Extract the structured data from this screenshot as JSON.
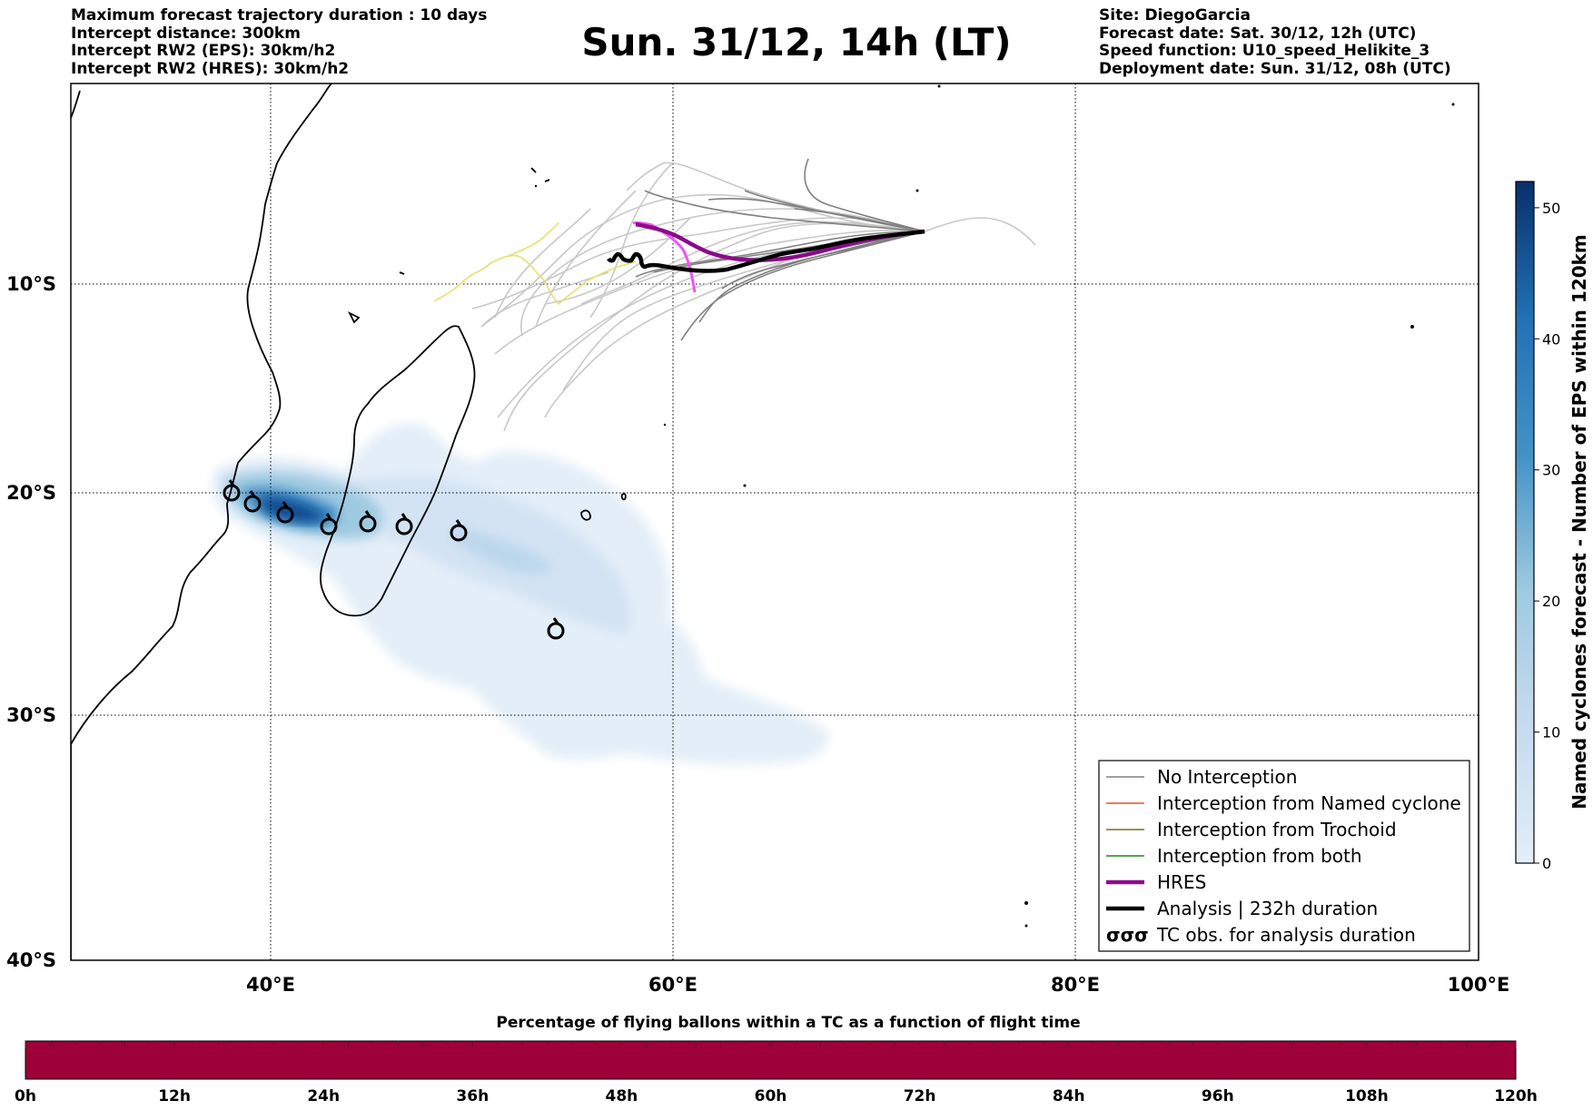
{
  "header_left": [
    "Maximum forecast trajectory duration : 10 days",
    "Intercept distance: 300km",
    "Intercept RW2 (EPS):  30km/h2",
    "Intercept RW2 (HRES): 30km/h2"
  ],
  "header_right": [
    "Site: DiegoGarcia",
    "Forecast date: Sat. 30/12, 12h (UTC)",
    "Speed function: U10_speed_Helikite_3",
    "Deployment date: Sun. 31/12, 08h (UTC)"
  ],
  "title": "Sun. 31/12, 14h (LT)",
  "map": {
    "lon_range": [
      30,
      100
    ],
    "lat_range": [
      -40,
      0
    ],
    "lat_labels": [
      "10°S",
      "20°S",
      "30°S",
      "40°S"
    ],
    "lon_labels": [
      "40°E",
      "60°E",
      "80°E",
      "100°E"
    ],
    "grid": true
  },
  "legend": {
    "placement": "bottom-right",
    "items": [
      {
        "label": "No Interception",
        "color": "#808080",
        "style": "thin"
      },
      {
        "label": "Interception from Named cyclone",
        "color": "#e8501e",
        "style": "thin"
      },
      {
        "label": "Interception from Trochoid",
        "color": "#7a6f16",
        "style": "thin"
      },
      {
        "label": "Interception from both",
        "color": "#1a8a1a",
        "style": "thin"
      },
      {
        "label": "HRES",
        "color": "#8b0a8b",
        "style": "thick"
      },
      {
        "label": "Analysis | 232h duration",
        "color": "#000000",
        "style": "thick"
      },
      {
        "label": "TC obs. for analysis duration",
        "color": "#000000",
        "style": "symbol",
        "symbol": "σσσ"
      }
    ]
  },
  "colorbar_right": {
    "label": "Named cyclones forecast - Number of EPS within 120km",
    "ticks": [
      "0",
      "10",
      "20",
      "30",
      "40",
      "50"
    ],
    "max": 52,
    "colors": [
      "#e3eef8",
      "#08306b"
    ]
  },
  "time_bar": {
    "title": "Percentage of flying ballons within a TC as a function of flight time",
    "ticks": [
      "0h",
      "12h",
      "24h",
      "36h",
      "48h",
      "60h",
      "72h",
      "84h",
      "96h",
      "108h",
      "120h"
    ],
    "fill_color": "#9e0038",
    "value_percent": 100
  },
  "colors": {
    "no_interception": "#808080",
    "light_trajectories": "#c8c8c8",
    "hres": "#8b0a8b",
    "hres_light": "#ee55ee",
    "analysis": "#000000",
    "yellow_track": "#e6e070"
  }
}
